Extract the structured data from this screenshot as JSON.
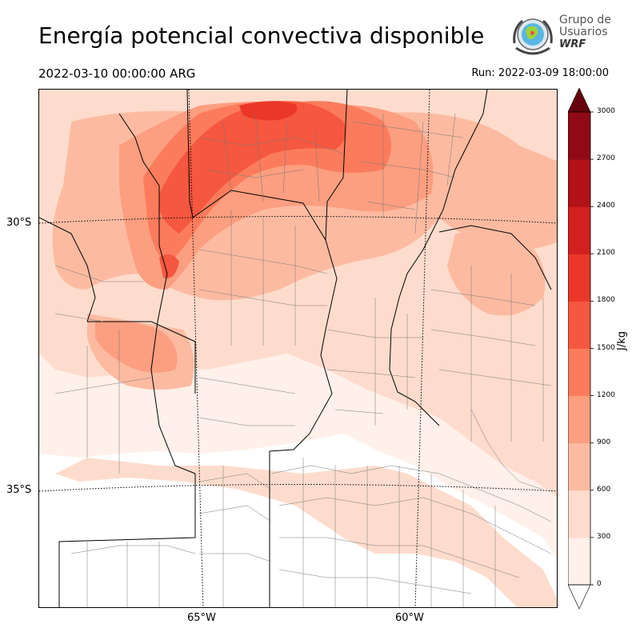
{
  "title": "Energía potencial convectiva disponible",
  "valid_time": "2022-03-10 00:00:00 ARG",
  "run_time": "Run: 2022-03-09 18:00:00",
  "logo": {
    "line1": "Grupo de",
    "line2": "Usuarios",
    "line3": "WRF",
    "icon": "globe-emblem-icon"
  },
  "map": {
    "lat_labels": [
      "30°S",
      "35°S"
    ],
    "lon_labels": [
      "65°W",
      "60°W"
    ],
    "field": "CAPE",
    "colors": {
      "boundary_province": "#000000",
      "boundary_department": "#777777",
      "graticule": "#000000"
    }
  },
  "colorbar": {
    "unit": "J/kg",
    "ticks": [
      "0",
      "300",
      "600",
      "900",
      "1200",
      "1500",
      "1800",
      "2100",
      "2400",
      "2700",
      "3000"
    ],
    "colors": [
      "#fff0e9",
      "#fedccd",
      "#fcbba1",
      "#fc9e80",
      "#fb7c5c",
      "#f6573f",
      "#ea372a",
      "#d1201f",
      "#b21218",
      "#8f0a14",
      "#67000d"
    ],
    "extend": "both"
  }
}
